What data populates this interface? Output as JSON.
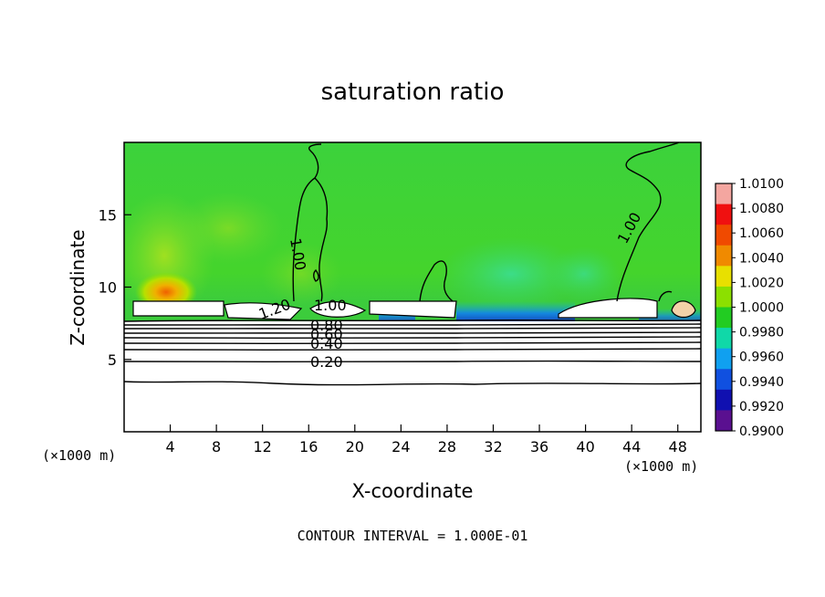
{
  "chart_data": {
    "type": "heatmap",
    "title": "saturation ratio",
    "xlabel": "X-coordinate",
    "ylabel": "Z-coordinate",
    "x_unit": "(×1000 m)",
    "y_unit": "(×1000 m)",
    "xlim": [
      0,
      50
    ],
    "ylim": [
      0,
      20
    ],
    "x_ticks": [
      4,
      8,
      12,
      16,
      20,
      24,
      28,
      32,
      36,
      40,
      44,
      48
    ],
    "y_ticks": [
      5,
      10,
      15
    ],
    "colorbar": {
      "ticks": [
        "1.0100",
        "1.0080",
        "1.0060",
        "1.0040",
        "1.0020",
        "1.0000",
        "0.9980",
        "0.9960",
        "0.9940",
        "0.9920",
        "0.9900"
      ],
      "colors": [
        "#f4a6a0",
        "#f01010",
        "#f04a00",
        "#f08a00",
        "#e8e000",
        "#8ce000",
        "#22cc22",
        "#10d8a8",
        "#10a0f0",
        "#1050e0",
        "#1010b0",
        "#5a1090"
      ]
    },
    "contour_labels": [
      "1.00",
      "1.00",
      "1.20",
      "1.00",
      "0.80",
      "0.60",
      "0.40",
      "0.20"
    ],
    "contour_interval_text": "CONTOUR INTERVAL = 1.000E-01",
    "grid": false,
    "legend_placement": "right"
  }
}
